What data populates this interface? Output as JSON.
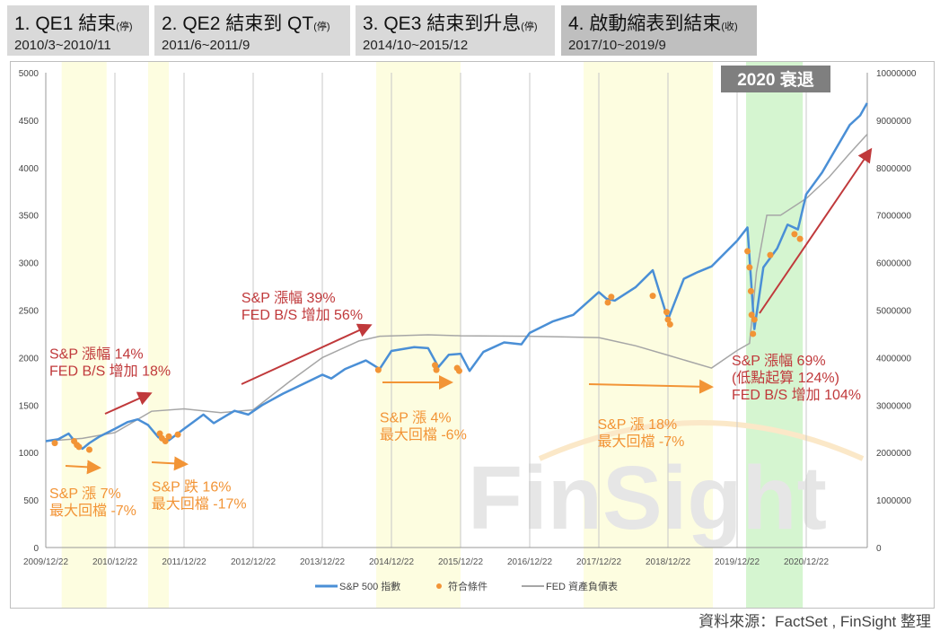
{
  "headers": [
    {
      "title": "1. QE1 結束",
      "suffix": "(停)",
      "dates": "2010/3~2010/11"
    },
    {
      "title": "2. QE2 結束到 QT",
      "suffix": "(停)",
      "dates": "2011/6~2011/9"
    },
    {
      "title": "3. QE3 結束到升息",
      "suffix": "(停)",
      "dates": "2014/10~2015/12"
    },
    {
      "title": "4. 啟動縮表到結束",
      "suffix": "(收)",
      "dates": "2017/10~2019/9"
    }
  ],
  "source": "資料來源：FactSet , FinSight 整理",
  "colors": {
    "sp": "#4a8fd6",
    "fed": "#a6a6a6",
    "points": "#f29436",
    "yellow": "#fdfde0",
    "green": "#d5f5d0",
    "red": "#c0393b",
    "orange": "#f29436"
  },
  "chart_data": {
    "type": "line",
    "watermark": "FinSight",
    "recession_label": "2020 衰退",
    "x_ticks": [
      "2009/12/22",
      "2010/12/22",
      "2011/12/22",
      "2012/12/22",
      "2013/12/22",
      "2014/12/22",
      "2015/12/22",
      "2016/12/22",
      "2017/12/22",
      "2018/12/22",
      "2019/12/22",
      "2020/12/22"
    ],
    "y_left": {
      "ylim": [
        0,
        5000
      ],
      "ticks": [
        0,
        500,
        1000,
        1500,
        2000,
        2500,
        3000,
        3500,
        4000,
        4500,
        5000
      ]
    },
    "y_right": {
      "ylim": [
        0,
        10000000
      ],
      "ticks": [
        0,
        1000000,
        2000000,
        3000000,
        4000000,
        5000000,
        6000000,
        7000000,
        8000000,
        9000000,
        10000000
      ]
    },
    "legend": [
      "S&P 500 指數",
      "符合條件",
      "FED 資產負債表"
    ],
    "shaded": [
      {
        "from": 2010.2,
        "to": 2010.85,
        "color": "yellow"
      },
      {
        "from": 2011.45,
        "to": 2011.75,
        "color": "yellow"
      },
      {
        "from": 2014.75,
        "to": 2015.97,
        "color": "yellow"
      },
      {
        "from": 2017.75,
        "to": 2019.62,
        "color": "yellow"
      },
      {
        "from": 2020.1,
        "to": 2020.92,
        "color": "green"
      }
    ],
    "series": [
      {
        "name": "S&P 500 指數",
        "axis": "left",
        "x": [
          2009.97,
          2010.15,
          2010.3,
          2010.42,
          2010.5,
          2010.6,
          2010.75,
          2010.97,
          2011.15,
          2011.3,
          2011.45,
          2011.6,
          2011.75,
          2011.97,
          2012.25,
          2012.4,
          2012.7,
          2012.9,
          2013.1,
          2013.4,
          2013.6,
          2013.97,
          2014.1,
          2014.3,
          2014.6,
          2014.8,
          2014.97,
          2015.3,
          2015.5,
          2015.65,
          2015.8,
          2015.97,
          2016.1,
          2016.3,
          2016.6,
          2016.85,
          2016.97,
          2017.3,
          2017.6,
          2017.97,
          2018.08,
          2018.2,
          2018.5,
          2018.75,
          2018.97,
          2019.2,
          2019.4,
          2019.6,
          2019.97,
          2020.12,
          2020.22,
          2020.35,
          2020.55,
          2020.7,
          2020.85,
          2020.97,
          2021.2,
          2021.4,
          2021.6,
          2021.75,
          2021.85
        ],
        "values": [
          1120,
          1140,
          1200,
          1090,
          1040,
          1100,
          1170,
          1250,
          1320,
          1350,
          1290,
          1160,
          1130,
          1250,
          1400,
          1310,
          1440,
          1400,
          1500,
          1620,
          1690,
          1820,
          1780,
          1880,
          1970,
          1880,
          2070,
          2110,
          2100,
          1900,
          2030,
          2040,
          1860,
          2060,
          2160,
          2140,
          2260,
          2380,
          2450,
          2690,
          2620,
          2600,
          2740,
          2920,
          2400,
          2830,
          2900,
          2960,
          3230,
          3370,
          2300,
          2950,
          3150,
          3400,
          3350,
          3720,
          3950,
          4200,
          4450,
          4550,
          4680
        ]
      },
      {
        "name": "FED 資產負債表",
        "axis": "right",
        "x": [
          2009.97,
          2010.5,
          2010.97,
          2011.5,
          2011.97,
          2012.5,
          2012.97,
          2013.5,
          2013.97,
          2014.5,
          2014.8,
          2015.5,
          2015.97,
          2016.97,
          2017.97,
          2018.5,
          2018.97,
          2019.6,
          2019.97,
          2020.15,
          2020.25,
          2020.4,
          2020.6,
          2020.97,
          2021.3,
          2021.6,
          2021.85
        ],
        "values": [
          2240000,
          2300000,
          2420000,
          2870000,
          2920000,
          2840000,
          2900000,
          3500000,
          4000000,
          4350000,
          4450000,
          4480000,
          4460000,
          4450000,
          4420000,
          4250000,
          4050000,
          3780000,
          4150000,
          4300000,
          5800000,
          7000000,
          7000000,
          7350000,
          7800000,
          8300000,
          8700000
        ]
      },
      {
        "name": "符合條件",
        "type": "scatter",
        "axis": "left",
        "x": [
          2010.1,
          2010.38,
          2010.42,
          2010.45,
          2010.6,
          2011.62,
          2011.65,
          2011.7,
          2011.75,
          2011.88,
          2014.78,
          2015.6,
          2015.62,
          2015.92,
          2015.95,
          2018.1,
          2018.15,
          2018.75,
          2018.95,
          2018.97,
          2019.0,
          2020.12,
          2020.15,
          2020.17,
          2020.18,
          2020.2,
          2020.22,
          2020.45,
          2020.8,
          2020.88
        ],
        "values": [
          1100,
          1120,
          1080,
          1060,
          1030,
          1200,
          1150,
          1120,
          1170,
          1190,
          1870,
          1920,
          1870,
          1890,
          1860,
          2580,
          2640,
          2650,
          2480,
          2400,
          2350,
          3120,
          2950,
          2700,
          2450,
          2250,
          2400,
          3080,
          3300,
          3250
        ]
      }
    ],
    "annotations": [
      {
        "text": [
          "S&P 漲 7%",
          "最大回檔 -7%"
        ],
        "color": "orange",
        "x": 2009.85,
        "y": 520
      },
      {
        "text": [
          "S&P 跌 16%",
          "最大回檔 -17%"
        ],
        "color": "orange",
        "x": 2011.5,
        "y": 590
      },
      {
        "text": [
          "S&P 漲幅 14%",
          "FED B/S 增加 18%"
        ],
        "color": "red",
        "x": 2010.0,
        "y": 1990
      },
      {
        "text": [
          "S&P 漲幅 39%",
          "FED B/S 增加 56%"
        ],
        "color": "red",
        "x": 2012.8,
        "y": 2580
      },
      {
        "text": [
          "S&P 漲 4%",
          "最大回檔 -6%"
        ],
        "color": "orange",
        "x": 2014.8,
        "y": 1320
      },
      {
        "text": [
          "S&P 漲 18%",
          "最大回檔 -7%"
        ],
        "color": "orange",
        "x": 2017.95,
        "y": 1250
      },
      {
        "text": [
          "S&P 漲幅 69%",
          "(低點起算 124%)",
          "FED B/S 增加 104%"
        ],
        "color": "red",
        "x": 2020.32,
        "y": 1920
      }
    ]
  }
}
